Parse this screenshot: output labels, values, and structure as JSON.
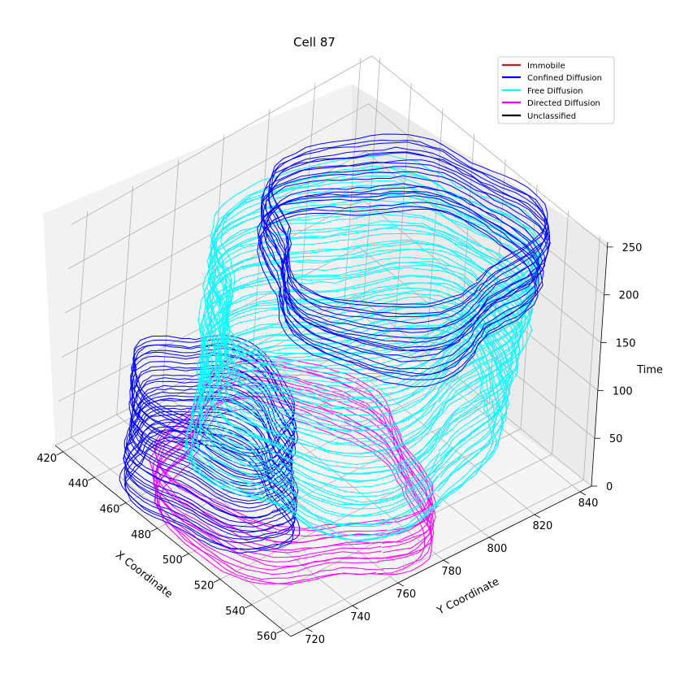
{
  "chart_data": {
    "type": "line",
    "title": "Cell 87",
    "xlabel": "X Coordinate",
    "ylabel": "Y Coordinate",
    "zlabel": "Time",
    "xlim": [
      415,
      565
    ],
    "ylim": [
      713,
      845
    ],
    "zlim": [
      0,
      255
    ],
    "x_ticks": [
      "420",
      "440",
      "460",
      "480",
      "500",
      "520",
      "540",
      "560"
    ],
    "y_ticks": [
      "720",
      "740",
      "760",
      "780",
      "800",
      "820",
      "840"
    ],
    "z_ticks": [
      "0",
      "50",
      "100",
      "150",
      "200",
      "250"
    ],
    "grid": true,
    "legend_position": "top-right",
    "legend": [
      {
        "label": "Immobile",
        "color": "#b22222"
      },
      {
        "label": "Confined Diffusion",
        "color": "#0000ff"
      },
      {
        "label": "Free Diffusion",
        "color": "#00ffff"
      },
      {
        "label": "Directed Diffusion",
        "color": "#ff00ff"
      },
      {
        "label": "Unclassified",
        "color": "#000000"
      }
    ],
    "series": [
      {
        "name": "Directed Diffusion",
        "color": "#ff00ff",
        "time_range": [
          0,
          60
        ],
        "x_range": [
          440,
          560
        ],
        "y_range": [
          715,
          800
        ]
      },
      {
        "name": "Confined Diffusion",
        "color": "#0000ff",
        "time_range": [
          0,
          120
        ],
        "x_range": [
          435,
          520
        ],
        "y_range": [
          715,
          760
        ]
      },
      {
        "name": "Free Diffusion",
        "color": "#00ffff",
        "time_range": [
          40,
          230
        ],
        "x_range": [
          440,
          560
        ],
        "y_range": [
          725,
          840
        ]
      },
      {
        "name": "Confined Diffusion",
        "color": "#0000ff",
        "time_range": [
          170,
          245
        ],
        "x_range": [
          440,
          555
        ],
        "y_range": [
          755,
          845
        ]
      }
    ]
  }
}
